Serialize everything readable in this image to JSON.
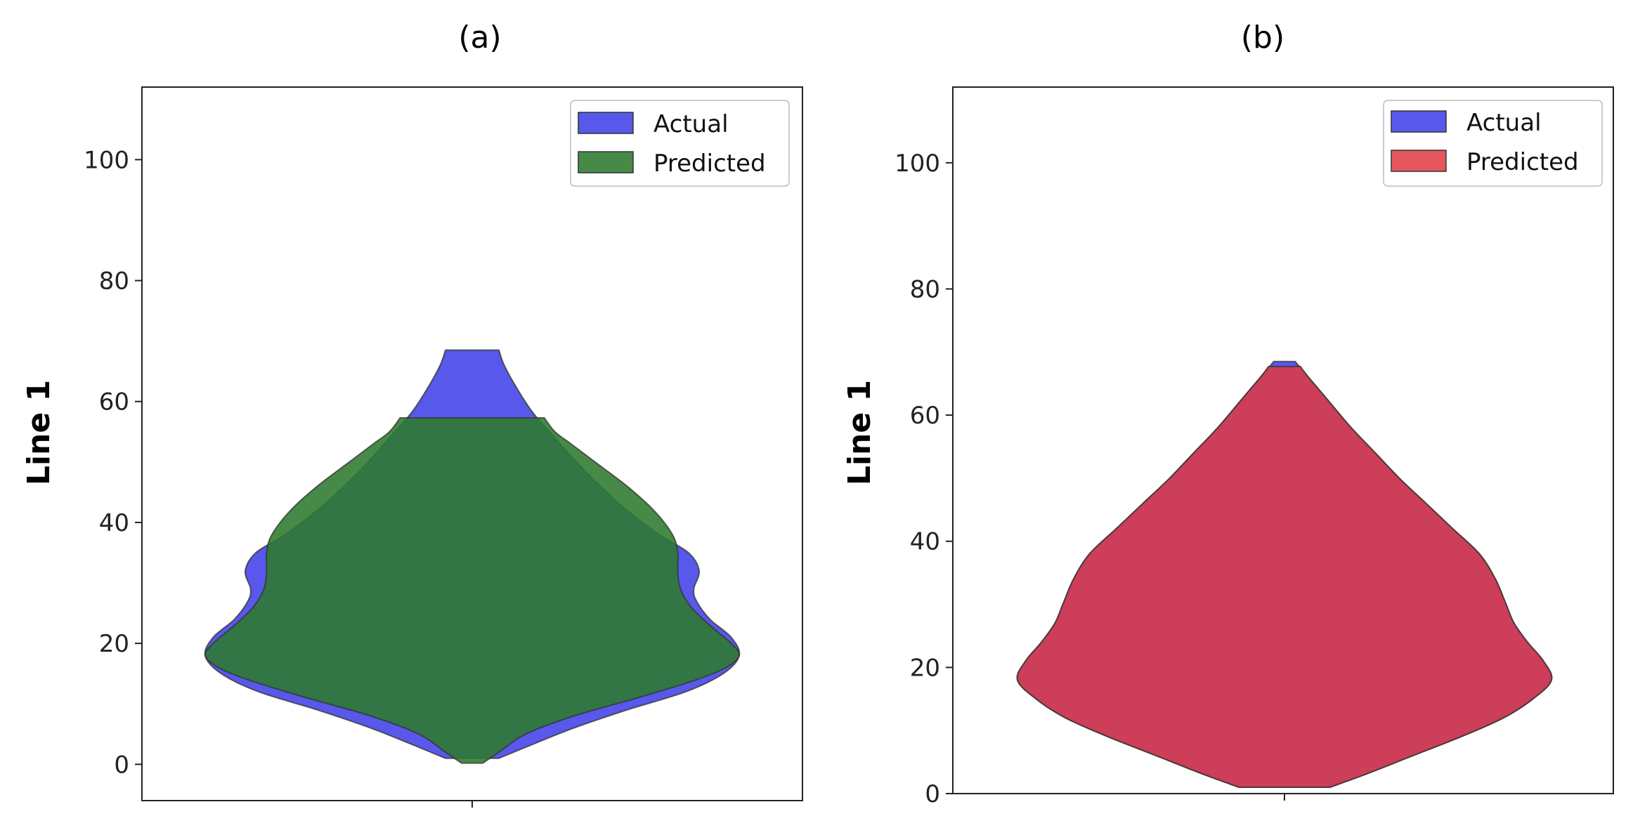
{
  "chart_data": [
    {
      "type": "violin",
      "title": "(a)",
      "ylabel": "Line 1",
      "xlabel": "",
      "ylim": [
        -6,
        112
      ],
      "yticks": [
        0,
        20,
        40,
        60,
        80,
        100
      ],
      "legend": {
        "placement": "top-right"
      },
      "series": [
        {
          "name": "Actual",
          "color": "#3b3be6",
          "opacity": 0.85,
          "profile": [
            [
              1,
              0.1
            ],
            [
              3,
              0.21
            ],
            [
              6,
              0.38
            ],
            [
              9,
              0.58
            ],
            [
              12,
              0.8
            ],
            [
              15,
              0.94
            ],
            [
              18,
              1.0
            ],
            [
              21,
              0.97
            ],
            [
              24,
              0.89
            ],
            [
              27,
              0.84
            ],
            [
              29,
              0.83
            ],
            [
              32,
              0.85
            ],
            [
              35,
              0.81
            ],
            [
              38,
              0.7
            ],
            [
              42,
              0.58
            ],
            [
              46,
              0.48
            ],
            [
              50,
              0.39
            ],
            [
              54,
              0.31
            ],
            [
              58,
              0.23
            ],
            [
              62,
              0.17
            ],
            [
              66,
              0.12
            ],
            [
              68.5,
              0.1
            ]
          ]
        },
        {
          "name": "Predicted",
          "color": "#2e7a2e",
          "opacity": 0.88,
          "profile": [
            [
              0.2,
              0.04
            ],
            [
              2,
              0.1
            ],
            [
              5,
              0.2
            ],
            [
              8,
              0.38
            ],
            [
              11,
              0.62
            ],
            [
              14,
              0.84
            ],
            [
              16,
              0.95
            ],
            [
              18,
              1.0
            ],
            [
              20,
              0.97
            ],
            [
              23,
              0.89
            ],
            [
              26,
              0.82
            ],
            [
              29,
              0.78
            ],
            [
              32,
              0.77
            ],
            [
              35,
              0.77
            ],
            [
              38,
              0.75
            ],
            [
              42,
              0.68
            ],
            [
              46,
              0.58
            ],
            [
              50,
              0.46
            ],
            [
              53,
              0.37
            ],
            [
              55,
              0.31
            ],
            [
              57.3,
              0.27
            ]
          ]
        }
      ]
    },
    {
      "type": "violin",
      "title": "(b)",
      "ylabel": "Line 1",
      "xlabel": "",
      "ylim": [
        0,
        112
      ],
      "yticks": [
        0,
        20,
        40,
        60,
        80,
        100
      ],
      "legend": {
        "placement": "top-right"
      },
      "series": [
        {
          "name": "Actual",
          "color": "#3b3be6",
          "opacity": 0.85,
          "profile": [
            [
              1,
              0.17
            ],
            [
              3,
              0.3
            ],
            [
              6,
              0.48
            ],
            [
              9,
              0.66
            ],
            [
              12,
              0.82
            ],
            [
              15,
              0.93
            ],
            [
              18,
              1.0
            ],
            [
              21,
              0.97
            ],
            [
              24,
              0.91
            ],
            [
              27,
              0.86
            ],
            [
              30,
              0.83
            ],
            [
              34,
              0.79
            ],
            [
              38,
              0.73
            ],
            [
              42,
              0.63
            ],
            [
              46,
              0.53
            ],
            [
              50,
              0.43
            ],
            [
              54,
              0.34
            ],
            [
              58,
              0.25
            ],
            [
              62,
              0.17
            ],
            [
              66,
              0.09
            ],
            [
              68.5,
              0.04
            ]
          ]
        },
        {
          "name": "Predicted",
          "color": "#e0393f",
          "opacity": 0.85,
          "profile": [
            [
              1,
              0.17
            ],
            [
              3,
              0.3
            ],
            [
              6,
              0.48
            ],
            [
              9,
              0.66
            ],
            [
              12,
              0.82
            ],
            [
              15,
              0.93
            ],
            [
              18,
              1.0
            ],
            [
              21,
              0.97
            ],
            [
              24,
              0.91
            ],
            [
              27,
              0.86
            ],
            [
              30,
              0.83
            ],
            [
              34,
              0.79
            ],
            [
              38,
              0.73
            ],
            [
              42,
              0.63
            ],
            [
              46,
              0.53
            ],
            [
              50,
              0.43
            ],
            [
              54,
              0.34
            ],
            [
              58,
              0.25
            ],
            [
              62,
              0.17
            ],
            [
              66,
              0.09
            ],
            [
              67.7,
              0.06
            ]
          ]
        }
      ]
    }
  ]
}
